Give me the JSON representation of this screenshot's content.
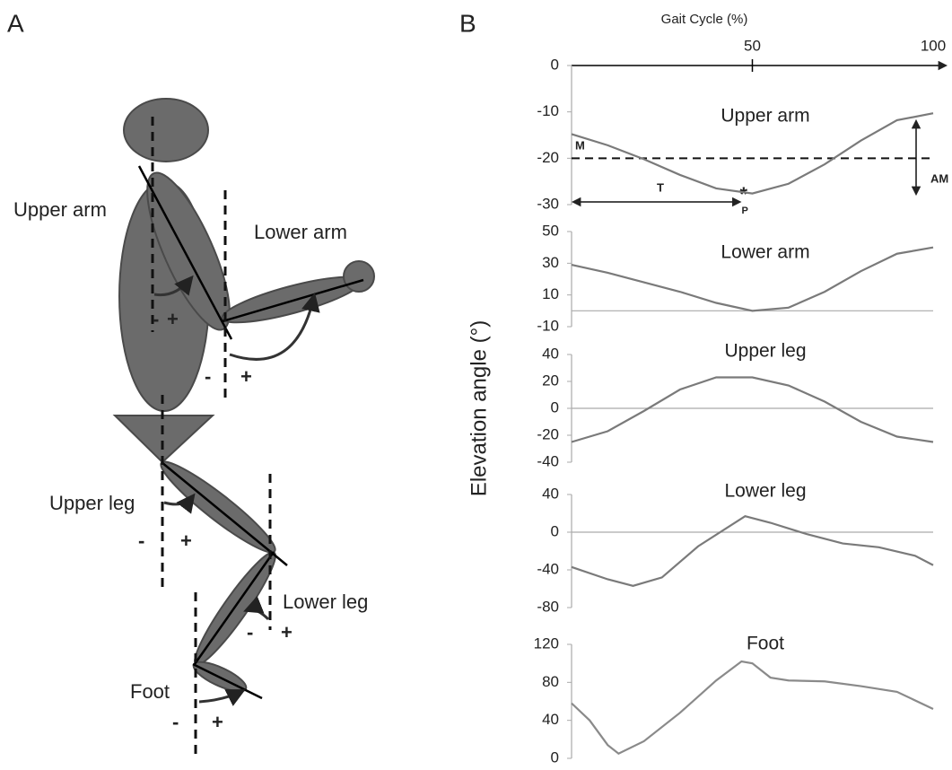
{
  "panel_a": {
    "letter": "A",
    "labels": [
      "Upper arm",
      "Lower arm",
      "Upper leg",
      "Lower leg",
      "Foot"
    ],
    "signs": [
      "-",
      "+",
      "-",
      "+",
      "-",
      "+",
      "-",
      "+",
      "-",
      "+"
    ]
  },
  "panel_b": {
    "letter": "B",
    "y_label": "Elevation angle (°)",
    "gait_axis": {
      "label": "Gait Cycle (%)",
      "xlim": [
        0,
        100
      ],
      "xticks": [
        50,
        100
      ]
    }
  },
  "chart_data": [
    {
      "type": "line",
      "title": "Upper arm",
      "color": "#7a7a7a",
      "x": [
        0,
        10,
        20,
        30,
        40,
        50,
        60,
        70,
        80,
        90,
        100
      ],
      "values": [
        -14.8,
        -17.2,
        -20.2,
        -23.6,
        -26.5,
        -27.6,
        -25.5,
        -21.3,
        -16.2,
        -11.8,
        -10.3
      ],
      "ylim": [
        -30,
        0
      ],
      "yticks": [
        0,
        -10,
        -20,
        -30
      ],
      "mean_line": -20,
      "phase": 48,
      "annotations": [
        "M",
        "T",
        "*",
        "P",
        "AM"
      ]
    },
    {
      "type": "line",
      "title": "Lower arm",
      "color": "#7a7a7a",
      "zero_line": true,
      "x": [
        0,
        10,
        20,
        30,
        40,
        50,
        60,
        70,
        80,
        90,
        100
      ],
      "values": [
        29,
        24,
        18,
        12,
        5,
        0,
        2,
        12,
        25,
        36,
        40
      ],
      "ylim": [
        -10,
        50
      ],
      "yticks": [
        50,
        30,
        10,
        -10
      ]
    },
    {
      "type": "line",
      "title": "Upper leg",
      "color": "#7a7a7a",
      "zero_line": true,
      "x": [
        0,
        10,
        20,
        30,
        40,
        50,
        60,
        70,
        80,
        90,
        100
      ],
      "values": [
        -25,
        -17,
        -2,
        14,
        23,
        23,
        17,
        5,
        -10,
        -21,
        -25
      ],
      "ylim": [
        -40,
        40
      ],
      "yticks": [
        40,
        20,
        0,
        -20,
        -40
      ]
    },
    {
      "type": "line",
      "title": "Lower leg",
      "color": "#7a7a7a",
      "zero_line": true,
      "x": [
        0,
        10,
        17,
        25,
        35,
        48,
        55,
        65,
        75,
        85,
        95,
        100
      ],
      "values": [
        -37,
        -50,
        -57,
        -48,
        -15,
        17,
        10,
        -2,
        -12,
        -16,
        -25,
        -35
      ],
      "ylim": [
        -80,
        40
      ],
      "yticks": [
        40,
        0,
        -40,
        -80
      ]
    },
    {
      "type": "line",
      "title": "Foot",
      "color": "#8a8a8a",
      "x": [
        0,
        5,
        10,
        13,
        20,
        30,
        40,
        47,
        50,
        55,
        60,
        70,
        80,
        90,
        100
      ],
      "values": [
        58,
        40,
        14,
        5,
        18,
        48,
        82,
        102,
        100,
        85,
        82,
        81,
        76,
        70,
        52
      ],
      "ylim": [
        0,
        120
      ],
      "yticks": [
        120,
        80,
        40,
        0
      ]
    }
  ]
}
